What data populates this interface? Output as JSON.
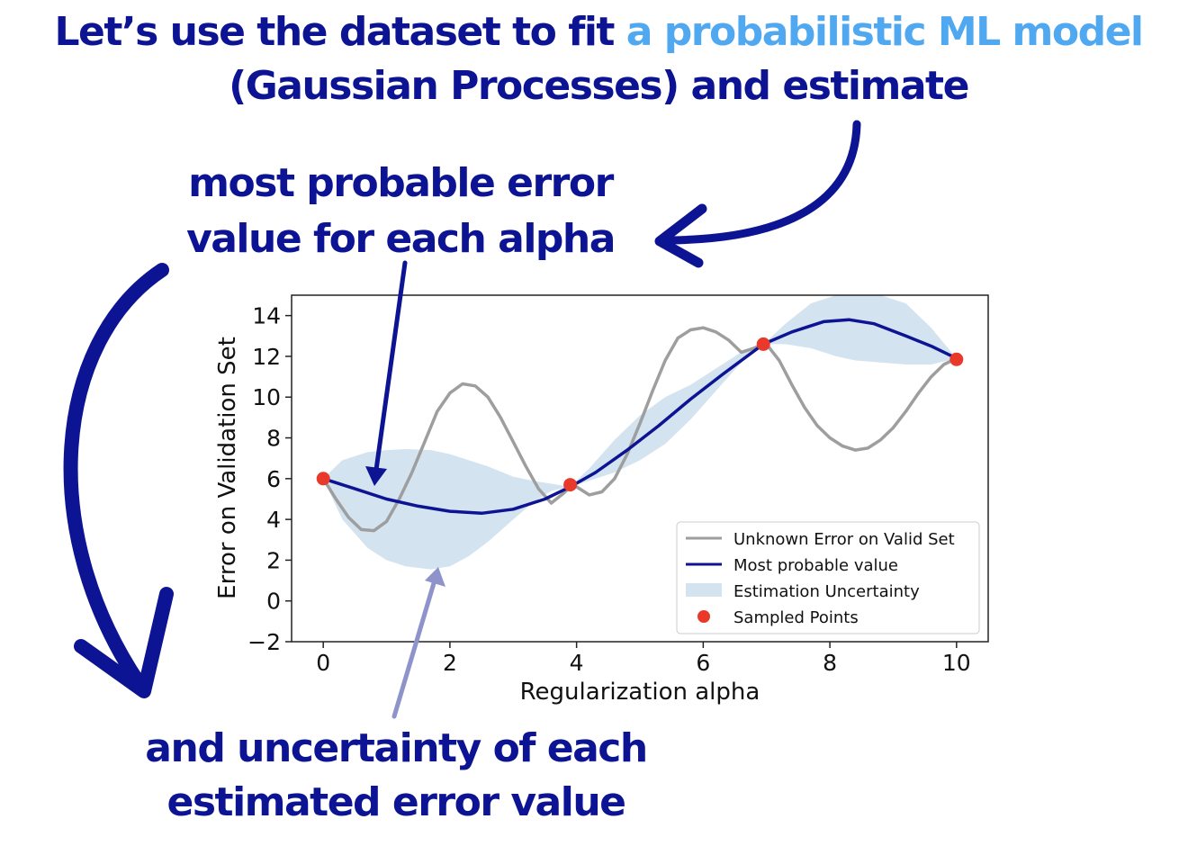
{
  "heading": {
    "line1_part1": "Let’s use the dataset to fit ",
    "line1_highlight": "a probabilistic ML model",
    "line2": "(Gaussian Processes) and estimate",
    "highlight_color": "#4fa8f0",
    "text_color": "#0d1494"
  },
  "annotations": {
    "mean_line1": "most probable error",
    "mean_line2": "value for each alpha",
    "uncert_line1": "and uncertainty of each",
    "uncert_line2": "estimated error value"
  },
  "colors": {
    "unknown": "#9e9e9e",
    "mean": "#0d1494",
    "band": "#d3e3f0",
    "points": "#e8392b",
    "arrow_dark": "#0d1494",
    "arrow_light": "#8e93cc"
  },
  "chart_data": {
    "type": "line",
    "xlabel": "Regularization alpha",
    "ylabel": "Error on Validation Set",
    "xlim": [
      -0.5,
      10.5
    ],
    "ylim": [
      -2,
      15
    ],
    "xticks": [
      "0",
      "2",
      "4",
      "6",
      "8",
      "10"
    ],
    "yticks": [
      "−2",
      "0",
      "2",
      "4",
      "6",
      "8",
      "10",
      "12",
      "14"
    ],
    "grid": false,
    "legend_position": "lower-right",
    "legend": [
      "Unknown Error on Valid Set",
      "Most probable value",
      "Estimation Uncertainty",
      "Sampled Points"
    ],
    "series": [
      {
        "name": "Unknown Error on Valid Set",
        "x": [
          0,
          0.2,
          0.4,
          0.6,
          0.8,
          1.0,
          1.2,
          1.4,
          1.6,
          1.8,
          2.0,
          2.2,
          2.4,
          2.6,
          2.8,
          3.0,
          3.2,
          3.4,
          3.6,
          3.8,
          3.9,
          4.0,
          4.2,
          4.4,
          4.6,
          4.8,
          5.0,
          5.2,
          5.4,
          5.6,
          5.8,
          6.0,
          6.2,
          6.4,
          6.6,
          6.8,
          6.95,
          7.0,
          7.2,
          7.4,
          7.6,
          7.8,
          8.0,
          8.2,
          8.4,
          8.6,
          8.8,
          9.0,
          9.2,
          9.4,
          9.6,
          9.8,
          10.0
        ],
        "y": [
          6.0,
          5.0,
          4.1,
          3.5,
          3.45,
          3.9,
          5.0,
          6.3,
          7.8,
          9.3,
          10.2,
          10.65,
          10.55,
          10.0,
          9.0,
          7.8,
          6.6,
          5.5,
          4.8,
          5.3,
          5.6,
          5.6,
          5.2,
          5.35,
          6.0,
          7.2,
          8.7,
          10.3,
          11.8,
          12.9,
          13.3,
          13.4,
          13.2,
          12.8,
          12.2,
          12.4,
          12.6,
          12.6,
          11.8,
          10.6,
          9.5,
          8.6,
          8.0,
          7.6,
          7.4,
          7.5,
          7.9,
          8.5,
          9.3,
          10.2,
          11.0,
          11.6,
          11.9
        ]
      },
      {
        "name": "Most probable value",
        "x": [
          0,
          0.5,
          1.0,
          1.5,
          2.0,
          2.5,
          3.0,
          3.5,
          3.9,
          4.3,
          4.8,
          5.3,
          5.8,
          6.3,
          6.95,
          7.4,
          7.9,
          8.3,
          8.7,
          9.2,
          9.6,
          10.0
        ],
        "y": [
          6.0,
          5.5,
          5.0,
          4.65,
          4.4,
          4.3,
          4.5,
          5.0,
          5.6,
          6.3,
          7.4,
          8.6,
          9.9,
          11.1,
          12.6,
          13.2,
          13.7,
          13.8,
          13.6,
          13.0,
          12.5,
          11.9
        ]
      },
      {
        "name": "Estimation Uncertainty",
        "x": [
          0,
          0.3,
          0.7,
          1.0,
          1.3,
          1.7,
          2.0,
          2.3,
          2.6,
          3.0,
          3.3,
          3.6,
          3.9,
          4.2,
          4.6,
          5.0,
          5.4,
          5.8,
          6.2,
          6.6,
          6.95,
          7.3,
          7.7,
          8.1,
          8.4,
          8.8,
          9.2,
          9.6,
          10.0
        ],
        "lower": [
          6.0,
          4.0,
          2.6,
          2.0,
          1.7,
          1.55,
          1.7,
          2.2,
          2.9,
          4.0,
          4.8,
          5.4,
          5.6,
          5.9,
          6.3,
          6.9,
          7.7,
          8.9,
          10.3,
          11.7,
          12.6,
          12.6,
          12.4,
          12.0,
          11.8,
          11.7,
          11.6,
          11.6,
          11.9
        ],
        "upper": [
          6.0,
          6.9,
          7.3,
          7.4,
          7.45,
          7.4,
          7.2,
          6.9,
          6.6,
          6.1,
          5.9,
          5.75,
          5.6,
          6.5,
          7.9,
          9.1,
          10.0,
          10.6,
          11.4,
          12.2,
          12.6,
          13.6,
          14.6,
          15.0,
          15.0,
          15.0,
          14.6,
          13.4,
          11.9
        ]
      },
      {
        "name": "Sampled Points",
        "x": [
          0,
          3.9,
          6.95,
          10.0
        ],
        "y": [
          6.0,
          5.7,
          12.6,
          11.85
        ]
      }
    ]
  }
}
